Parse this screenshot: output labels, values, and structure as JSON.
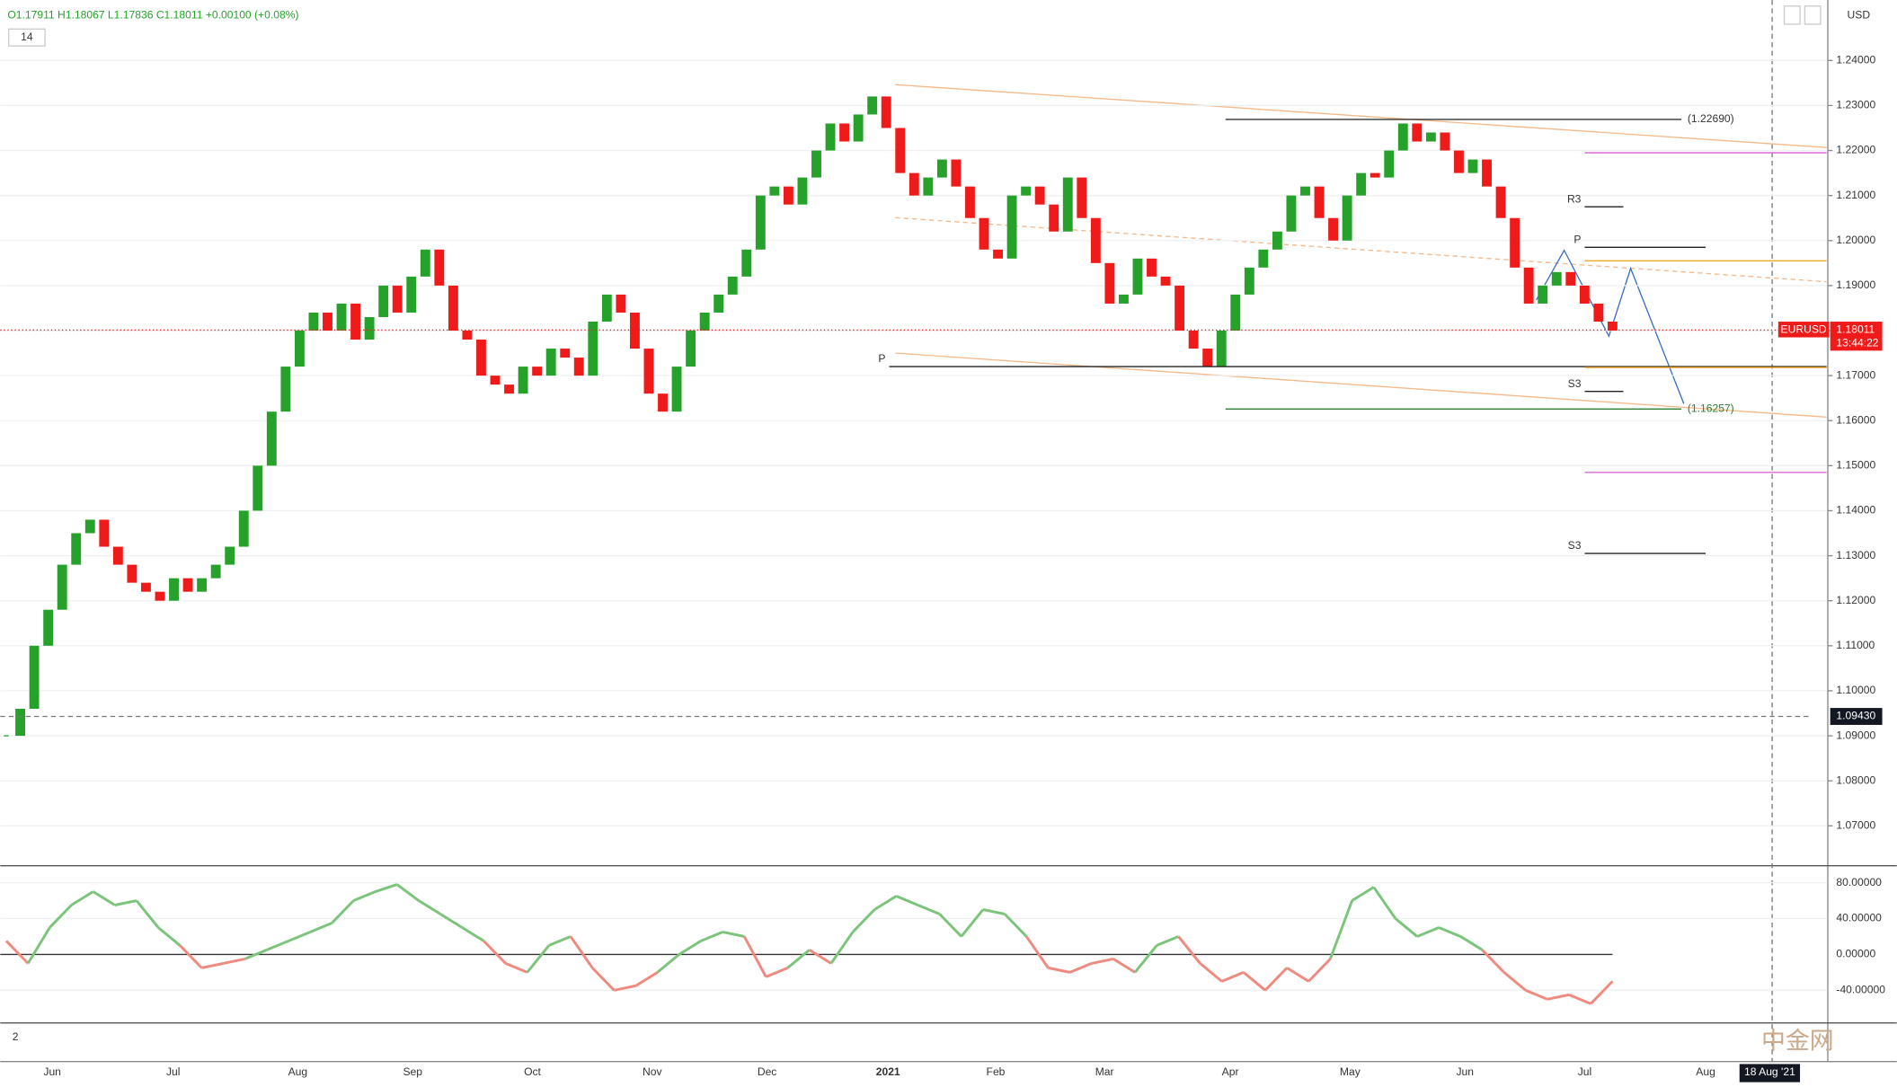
{
  "chart_data": [
    {
      "type": "candlestick",
      "symbol": "EURUSD",
      "header": [
        "O1.17911",
        "H1.18067",
        "L1.17836",
        "C1.18011",
        "+0.00100 (+0.08%)"
      ],
      "interval": "14",
      "currency": "USD",
      "closes": [
        1.09,
        1.096,
        1.11,
        1.118,
        1.128,
        1.135,
        1.138,
        1.132,
        1.128,
        1.124,
        1.122,
        1.12,
        1.125,
        1.122,
        1.125,
        1.128,
        1.132,
        1.14,
        1.15,
        1.162,
        1.172,
        1.18,
        1.184,
        1.18,
        1.186,
        1.178,
        1.183,
        1.19,
        1.184,
        1.192,
        1.198,
        1.19,
        1.18,
        1.178,
        1.17,
        1.168,
        1.166,
        1.172,
        1.17,
        1.176,
        1.174,
        1.17,
        1.182,
        1.188,
        1.184,
        1.176,
        1.166,
        1.162,
        1.172,
        1.18,
        1.184,
        1.188,
        1.192,
        1.198,
        1.21,
        1.212,
        1.208,
        1.214,
        1.22,
        1.226,
        1.222,
        1.228,
        1.232,
        1.225,
        1.215,
        1.21,
        1.214,
        1.218,
        1.212,
        1.205,
        1.198,
        1.196,
        1.21,
        1.212,
        1.208,
        1.202,
        1.214,
        1.205,
        1.195,
        1.186,
        1.188,
        1.196,
        1.192,
        1.19,
        1.18,
        1.176,
        1.172,
        1.18,
        1.188,
        1.194,
        1.198,
        1.202,
        1.21,
        1.212,
        1.205,
        1.2,
        1.21,
        1.215,
        1.214,
        1.22,
        1.226,
        1.222,
        1.224,
        1.22,
        1.215,
        1.218,
        1.212,
        1.205,
        1.194,
        1.186,
        1.19,
        1.193,
        1.19,
        1.186,
        1.182,
        1.18
      ],
      "up_color": "#26a22b",
      "down_color": "#ef1b1b",
      "ylim": [
        1.06114,
        1.25343
      ],
      "yticks": [
        {
          "value": 1.07,
          "label": "1.07000"
        },
        {
          "value": 1.08,
          "label": "1.08000"
        },
        {
          "value": 1.09,
          "label": "1.09000"
        },
        {
          "value": 1.1,
          "label": "1.10000"
        },
        {
          "value": 1.11,
          "label": "1.11000"
        },
        {
          "value": 1.12,
          "label": "1.12000"
        },
        {
          "value": 1.13,
          "label": "1.13000"
        },
        {
          "value": 1.14,
          "label": "1.14000"
        },
        {
          "value": 1.15,
          "label": "1.15000"
        },
        {
          "value": 1.16,
          "label": "1.16000"
        },
        {
          "value": 1.17,
          "label": "1.17000"
        },
        {
          "value": 1.18,
          "label": "1.18000"
        },
        {
          "value": 1.19,
          "label": "1.19000"
        },
        {
          "value": 1.2,
          "label": "1.20000"
        },
        {
          "value": 1.21,
          "label": "1.21000"
        },
        {
          "value": 1.22,
          "label": "1.22000"
        },
        {
          "value": 1.23,
          "label": "1.23000"
        },
        {
          "value": 1.24,
          "label": "1.24000"
        }
      ],
      "last_price": {
        "value": 1.18011,
        "label": "1.18011"
      },
      "countdown": "13:44:22",
      "crosshair": {
        "value": 1.0943,
        "label": "1.09430"
      },
      "levels": [
        {
          "value": 1.2269,
          "label": "(1.22690)",
          "color": "#333333"
        },
        {
          "value": 1.16257,
          "label": "(1.16257)",
          "color": "#2e7d32"
        },
        {
          "value": 1.172,
          "label": "P",
          "color": "#222222"
        },
        {
          "value": 1.2075,
          "label": "R3",
          "color": "#222222"
        },
        {
          "value": 1.1985,
          "label": "P",
          "color": "#222222"
        },
        {
          "value": 1.1665,
          "label": "S3",
          "color": "#222222"
        },
        {
          "value": 1.1305,
          "label": "S3",
          "color": "#222222"
        },
        {
          "value": 1.2195,
          "color": "#d65bd6"
        },
        {
          "value": 1.1485,
          "color": "#d65bd6"
        },
        {
          "value": 1.1955,
          "color": "#f5a623"
        },
        {
          "value": 1.1718,
          "color": "#f5a623"
        }
      ],
      "grid": true,
      "months": [
        "Jun",
        "Jul",
        "Aug",
        "Sep",
        "Oct",
        "Nov",
        "Dec",
        "2021",
        "Feb",
        "Mar",
        "Apr",
        "May",
        "Jun",
        "Jul",
        "Aug"
      ],
      "date_label": "18 Aug '21"
    },
    {
      "type": "oscillator",
      "values": [
        15,
        -10,
        30,
        55,
        70,
        55,
        60,
        30,
        10,
        -15,
        -10,
        -5,
        5,
        15,
        25,
        35,
        60,
        70,
        78,
        60,
        45,
        30,
        15,
        -10,
        -20,
        10,
        20,
        -15,
        -40,
        -35,
        -20,
        0,
        15,
        25,
        20,
        -25,
        -15,
        5,
        -10,
        25,
        50,
        65,
        55,
        45,
        20,
        50,
        45,
        20,
        -15,
        -20,
        -10,
        -5,
        -20,
        10,
        20,
        -10,
        -30,
        -20,
        -40,
        -15,
        -30,
        -5,
        60,
        75,
        40,
        20,
        30,
        20,
        5,
        -20,
        -40,
        -50,
        -45,
        -55,
        -30
      ],
      "up_color": "#7cc47c",
      "down_color": "#ef8a80",
      "ylim": [
        -75.05,
        96.2
      ],
      "yticks": [
        {
          "value": 80,
          "label": "80.00000"
        },
        {
          "value": 40,
          "label": "40.00000"
        },
        {
          "value": 0,
          "label": "0.00000"
        },
        {
          "value": -40,
          "label": "-40.00000"
        }
      ],
      "pane_label": "2"
    }
  ],
  "watermark": "中金网"
}
